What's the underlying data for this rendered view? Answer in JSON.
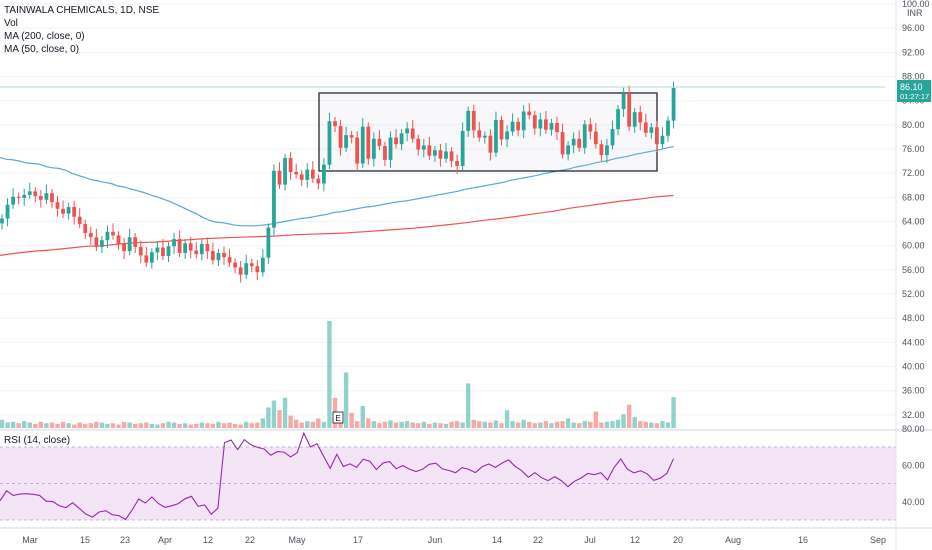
{
  "legend": {
    "title": "TAINWALA CHEMICALS, 1D, NSE",
    "vol": "Vol",
    "ma200": "MA (200, close, 0)",
    "ma50": "MA (50, close, 0)",
    "rsi": "RSI (14, close)"
  },
  "price_badge": {
    "price": "86.10",
    "countdown": "01:27:17"
  },
  "volume_marker": "E",
  "colors": {
    "up": "#26a69a",
    "down": "#ef5350",
    "ma50": "#5aa9d6",
    "ma200": "#ef5350",
    "rsi": "#9c27b0",
    "rsi_band": "#f3e5f5"
  },
  "chart_data": {
    "type": "candlestick",
    "title": "TAINWALA CHEMICALS, 1D, NSE",
    "price_axis": {
      "ticks": [
        100,
        96,
        92,
        88,
        84,
        80,
        76,
        72,
        68,
        64,
        60,
        56,
        52,
        48,
        44,
        40,
        36,
        32
      ],
      "tick_labels": [
        "100.00",
        "96.00",
        "92.00",
        "88.00",
        "84.00",
        "80.00",
        "76.00",
        "72.00",
        "68.00",
        "64.00",
        "60.00",
        "56.00",
        "52.00",
        "48.00",
        "44.00",
        "40.00",
        "36.00",
        "32.00"
      ],
      "range": [
        29.5,
        100
      ],
      "currency": "INR"
    },
    "x_axis": {
      "labels": [
        "Mar",
        "15",
        "23",
        "Apr",
        "12",
        "22",
        "May",
        "17",
        "Jun",
        "14",
        "22",
        "Jul",
        "12",
        "20",
        "Aug",
        "16",
        "Sep"
      ]
    },
    "closes": [
      64.5,
      66.8,
      68.1,
      67.9,
      68.4,
      69.0,
      68.2,
      67.6,
      68.7,
      67.2,
      66.1,
      65.3,
      66.4,
      64.8,
      63.6,
      62.1,
      61.4,
      59.8,
      60.9,
      62.3,
      61.7,
      60.3,
      59.1,
      61.4,
      59.8,
      58.4,
      57.2,
      58.9,
      59.7,
      58.3,
      59.9,
      61.1,
      58.8,
      60.4,
      59.2,
      58.6,
      60.3,
      59.1,
      57.6,
      58.8,
      58.1,
      57.2,
      56.4,
      55.2,
      57.1,
      56.6,
      55.6,
      58.0,
      63.0,
      72.4,
      70.1,
      74.5,
      72.2,
      71.8,
      70.9,
      72.6,
      71.1,
      70.3,
      73.4,
      80.6,
      79.8,
      76.2,
      78.3,
      77.9,
      73.6,
      79.7,
      74.4,
      77.7,
      76.5,
      74.2,
      77.9,
      76.8,
      78.6,
      79.4,
      77.7,
      75.9,
      76.6,
      74.9,
      75.8,
      74.4,
      75.6,
      74.0,
      73.2,
      79.0,
      82.3,
      79.1,
      77.9,
      78.2,
      75.4,
      80.8,
      77.6,
      78.9,
      80.5,
      79.1,
      82.2,
      81.6,
      79.4,
      80.9,
      79.2,
      80.3,
      78.8,
      75.1,
      76.6,
      77.7,
      76.2,
      80.1,
      78.9,
      76.8,
      75.0,
      76.6,
      79.3,
      82.6,
      85.1,
      79.7,
      82.1,
      80.4,
      78.7,
      79.6,
      76.8,
      78.2,
      80.7,
      86.1
    ],
    "ma50": [
      74.6,
      74.3,
      74.2,
      74.0,
      73.7,
      73.6,
      73.5,
      73.1,
      72.9,
      72.8,
      72.5,
      72.0,
      71.6,
      71.3,
      70.9,
      70.7,
      70.5,
      70.3,
      69.9,
      69.7,
      69.4,
      69.1,
      68.8,
      68.4,
      68.1,
      67.7,
      67.3,
      66.8,
      66.3,
      65.8,
      65.3,
      64.7,
      64.2,
      63.9,
      63.8,
      63.6,
      63.4,
      63.3,
      63.3,
      63.3,
      63.4,
      63.5,
      63.7,
      63.9,
      64.1,
      64.3,
      64.5,
      64.6,
      64.8,
      65.0,
      65.2,
      65.5,
      65.6,
      65.8,
      66.0,
      66.2,
      66.4,
      66.5,
      66.7,
      66.9,
      67.1,
      67.3,
      67.4,
      67.6,
      67.8,
      68.0,
      68.2,
      68.4,
      68.6,
      68.8,
      69.0,
      69.3,
      69.5,
      69.7,
      69.9,
      70.1,
      70.3,
      70.5,
      70.8,
      71.0,
      71.2,
      71.4,
      71.6,
      71.9,
      72.1,
      72.3,
      72.5,
      72.7,
      73.0,
      73.2,
      73.4,
      73.7,
      73.9,
      74.1,
      74.4,
      74.6,
      74.8,
      75.1,
      75.3,
      75.5,
      75.7,
      75.9,
      76.2,
      76.4
    ],
    "ma200": [
      58.4,
      58.8,
      59.1,
      59.3,
      59.6,
      59.9,
      60.0,
      60.3,
      60.5,
      60.6,
      60.8,
      61.0,
      61.2,
      61.3,
      61.4,
      61.5,
      61.6,
      61.8,
      61.9,
      62.0,
      62.1,
      62.3,
      62.5,
      62.7,
      62.9,
      63.2,
      63.5,
      63.8,
      64.2,
      64.5,
      64.9,
      65.3,
      65.7,
      66.2,
      66.6,
      67.0,
      67.4,
      67.7,
      68.1,
      68.3
    ],
    "volume": [
      1.2,
      0.8,
      0.9,
      0.7,
      1.0,
      0.8,
      0.6,
      0.9,
      0.7,
      0.8,
      0.6,
      0.9,
      0.7,
      0.5,
      0.8,
      0.6,
      0.7,
      0.9,
      0.8,
      0.6,
      0.7,
      0.5,
      0.9,
      0.8,
      0.6,
      0.7,
      0.8,
      0.6,
      0.5,
      0.7,
      0.9,
      0.8,
      0.6,
      0.7,
      0.5,
      0.6,
      0.8,
      0.7,
      0.6,
      0.9,
      0.7,
      0.8,
      0.6,
      0.5,
      0.9,
      0.7,
      0.8,
      1.4,
      3.0,
      4.0,
      2.6,
      4.4,
      1.8,
      1.2,
      0.8,
      1.0,
      0.9,
      1.4,
      0.9,
      15.6,
      4.4,
      2.0,
      8.1,
      2.2,
      1.0,
      3.2,
      1.4,
      1.0,
      0.7,
      0.9,
      1.1,
      0.8,
      0.9,
      1.0,
      0.8,
      0.7,
      0.9,
      0.6,
      0.8,
      0.7,
      0.6,
      0.9,
      1.0,
      0.8,
      6.5,
      1.2,
      1.0,
      0.9,
      0.8,
      1.1,
      0.7,
      2.6,
      1.0,
      0.8,
      1.2,
      0.9,
      0.7,
      0.8,
      1.0,
      0.7,
      0.9,
      1.0,
      1.4,
      0.8,
      0.7,
      1.0,
      0.9,
      2.4,
      0.8,
      0.9,
      1.0,
      1.2,
      2.0,
      3.4,
      1.6,
      1.0,
      0.9,
      0.8,
      0.7,
      1.0,
      0.8,
      4.5
    ],
    "rsi": {
      "ticks": [
        80,
        60,
        40
      ],
      "tick_labels": [
        "80.00",
        "60.00",
        "40.00"
      ],
      "band": [
        30,
        70
      ],
      "values": [
        40.5,
        46.0,
        43.5,
        44.2,
        44.4,
        44.1,
        43.5,
        40.3,
        40.1,
        37.8,
        36.8,
        39.5,
        36.4,
        33.3,
        31.6,
        34.4,
        35.1,
        32.9,
        32.4,
        30.3,
        35.4,
        41.5,
        39.3,
        42.6,
        39.0,
        36.9,
        37.8,
        39.0,
        41.6,
        43.0,
        37.5,
        38.2,
        33.1,
        36.5,
        72.4,
        73.8,
        68.5,
        74.0,
        71.2,
        69.8,
        68.9,
        65.5,
        67.5,
        67.2,
        64.5,
        66.9,
        77.6,
        70.0,
        71.8,
        64.9,
        58.3,
        66.0,
        59.3,
        60.8,
        58.8,
        63.3,
        62.2,
        57.6,
        61.3,
        62.0,
        58.1,
        59.8,
        57.9,
        56.6,
        57.8,
        60.5,
        61.1,
        58.0,
        57.1,
        55.9,
        58.7,
        57.7,
        56.0,
        59.2,
        60.7,
        58.8,
        61.1,
        63.0,
        59.4,
        57.0,
        53.4,
        55.9,
        53.2,
        51.6,
        53.8,
        51.6,
        48.3,
        51.2,
        53.0,
        55.5,
        54.8,
        55.9,
        52.0,
        58.8,
        63.4,
        57.9,
        55.8,
        57.0,
        55.3,
        51.7,
        52.9,
        55.6,
        63.6
      ]
    }
  }
}
